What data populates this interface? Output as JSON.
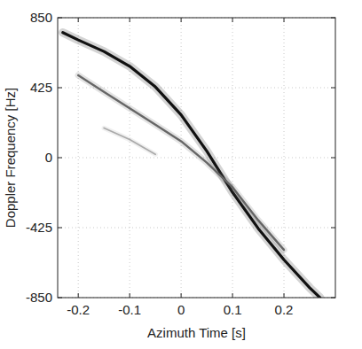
{
  "chart_data": {
    "type": "line",
    "x_label": "Azimuth Time [s]",
    "y_label": "Doppler Frequency [Hz]",
    "x": [
      -0.23,
      -0.2,
      -0.15,
      -0.1,
      -0.05,
      0,
      0.05,
      0.1,
      0.15,
      0.2,
      0.25,
      0.27
    ],
    "series": [
      {
        "color": "#111111",
        "values": [
          760,
          715,
          645,
          555,
          430,
          260,
          40,
          -210,
          -430,
          -620,
          -790,
          -850
        ]
      },
      {
        "color": "#666666",
        "values": [
          null,
          500,
          400,
          300,
          200,
          100,
          -30,
          -180,
          -380,
          -560,
          null,
          null
        ]
      },
      {
        "color": "#aaaaaa",
        "values": [
          null,
          null,
          180,
          110,
          20,
          null,
          null,
          null,
          null,
          null,
          null,
          null
        ]
      }
    ],
    "xlim": [
      -0.24,
      0.3
    ],
    "ylim": [
      -850,
      850
    ],
    "xticks": [
      -0.2,
      -0.1,
      0,
      0.1,
      0.2
    ],
    "yticks": [
      -850,
      -425,
      0,
      425,
      850
    ],
    "grid": true
  }
}
